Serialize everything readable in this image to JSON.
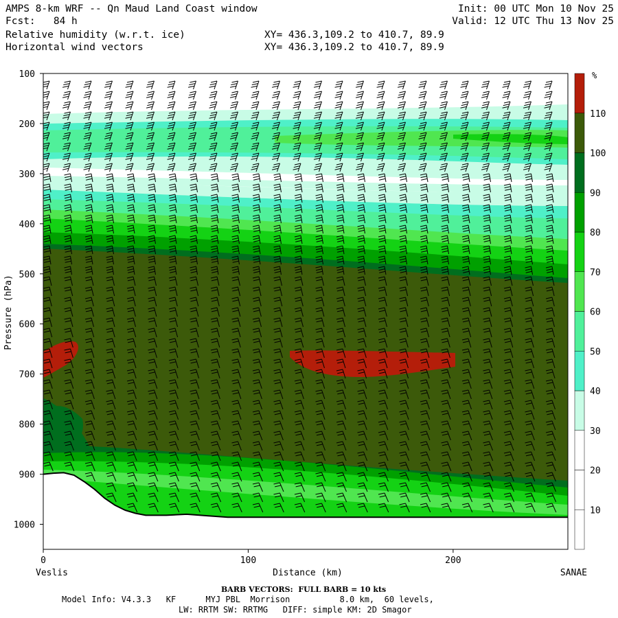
{
  "header": {
    "title": "AMPS 8-km WRF -- Qn Maud Land Coast window",
    "fcst": "Fcst:   84 h",
    "init": "Init: 00 UTC Mon 10 Nov 25",
    "valid": "Valid: 12 UTC Thu 13 Nov 25",
    "field1": "Relative humidity (w.r.t. ice)",
    "field2": "Horizontal wind vectors",
    "xy1": "XY= 436.3,109.2 to 410.7, 89.9",
    "xy2": "XY= 436.3,109.2 to 410.7, 89.9"
  },
  "footer": {
    "barb": "BARB VECTORS:  FULL BARB = 10 kts",
    "model_line": "Model Info: V4.3.3   KF      MYJ PBL  Morrison          8.0 km,  60 levels,",
    "model_line2": "LW: RRTM SW: RRTMG   DIFF: simple KM: 2D Smagor"
  },
  "chart_data": {
    "type": "heatmap",
    "xlabel": "Distance (km)",
    "ylabel": "Pressure (hPa)",
    "x_left_label": "Veslis",
    "x_right_label": "SANAE",
    "xlim": [
      0,
      256
    ],
    "ylim": [
      1050,
      100
    ],
    "x_ticks": [
      "0",
      "100",
      "200"
    ],
    "y_ticks": [
      "100",
      "200",
      "300",
      "400",
      "500",
      "600",
      "700",
      "800",
      "900",
      "1000"
    ],
    "colorbar": {
      "unit": "%",
      "labels": [
        "10",
        "20",
        "30",
        "40",
        "50",
        "60",
        "70",
        "80",
        "90",
        "100",
        "110"
      ],
      "colors": [
        "#ffffff",
        "#ffffff",
        "#ffffff",
        "#c8fce6",
        "#4ff0c8",
        "#50f09a",
        "#50e650",
        "#14d214",
        "#00a000",
        "#006e1e",
        "#3c5a0a",
        "#b41e0a"
      ]
    },
    "terrain_hpa": [
      [
        0,
        900
      ],
      [
        5,
        898
      ],
      [
        10,
        897
      ],
      [
        15,
        902
      ],
      [
        20,
        915
      ],
      [
        25,
        930
      ],
      [
        30,
        948
      ],
      [
        35,
        962
      ],
      [
        40,
        972
      ],
      [
        45,
        978
      ],
      [
        50,
        982
      ],
      [
        60,
        982
      ],
      [
        70,
        980
      ],
      [
        80,
        983
      ],
      [
        90,
        986
      ],
      [
        100,
        986
      ],
      [
        120,
        986
      ],
      [
        150,
        986
      ],
      [
        200,
        986
      ],
      [
        256,
        986
      ]
    ],
    "moist_regions": [
      {
        "name": "",
        "level": ">110",
        "x": [
          0,
          18
        ],
        "p": [
          630,
          700
        ]
      },
      {
        "name": "",
        "level": ">110",
        "x": [
          120,
          202
        ],
        "p": [
          655,
          705
        ]
      }
    ],
    "grid": false,
    "legend_position": "right colorbar"
  }
}
